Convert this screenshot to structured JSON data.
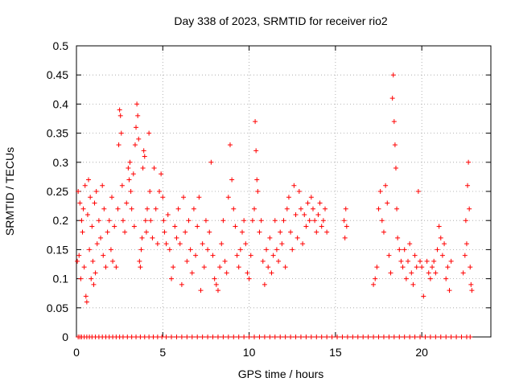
{
  "chart_data": {
    "type": "scatter",
    "title": "Day 338 of 2023, SRMTID for receiver rio2",
    "xlabel": "GPS time / hours",
    "ylabel": "SRMTID / TECUs",
    "xlim": [
      0,
      24
    ],
    "ylim": [
      0,
      0.5
    ],
    "x_ticks": [
      0,
      5,
      10,
      15,
      20
    ],
    "x_tick_labels": [
      "0",
      "5",
      "10",
      "15",
      "20"
    ],
    "y_ticks": [
      0,
      0.05,
      0.1,
      0.15,
      0.2,
      0.25,
      0.3,
      0.35,
      0.4,
      0.45,
      0.5
    ],
    "y_tick_labels": [
      "0",
      "0.05",
      "0.1",
      "0.15",
      "0.2",
      "0.25",
      "0.3",
      "0.35",
      "0.4",
      "0.45",
      "0.5"
    ],
    "grid": true,
    "marker": "+",
    "color": "#ff0000",
    "series": [
      {
        "name": "SRMTID",
        "points": [
          [
            0.05,
            0.13
          ],
          [
            0.1,
            0.25
          ],
          [
            0.15,
            0.14
          ],
          [
            0.2,
            0.23
          ],
          [
            0.25,
            0.1
          ],
          [
            0.3,
            0.2
          ],
          [
            0.35,
            0.18
          ],
          [
            0.4,
            0.22
          ],
          [
            0.45,
            0.12
          ],
          [
            0.5,
            0.26
          ],
          [
            0.55,
            0.07
          ],
          [
            0.6,
            0.06
          ],
          [
            0.65,
            0.21
          ],
          [
            0.7,
            0.27
          ],
          [
            0.75,
            0.15
          ],
          [
            0.8,
            0.24
          ],
          [
            0.85,
            0.1
          ],
          [
            0.9,
            0.19
          ],
          [
            0.95,
            0.13
          ],
          [
            1.0,
            0.09
          ],
          [
            1.05,
            0.23
          ],
          [
            1.1,
            0.11
          ],
          [
            1.15,
            0.25
          ],
          [
            1.2,
            0.16
          ],
          [
            1.3,
            0.2
          ],
          [
            1.4,
            0.17
          ],
          [
            1.5,
            0.26
          ],
          [
            1.55,
            0.14
          ],
          [
            1.6,
            0.22
          ],
          [
            1.7,
            0.12
          ],
          [
            1.8,
            0.18
          ],
          [
            1.9,
            0.2
          ],
          [
            2.0,
            0.15
          ],
          [
            2.05,
            0.24
          ],
          [
            2.1,
            0.13
          ],
          [
            2.2,
            0.19
          ],
          [
            2.3,
            0.12
          ],
          [
            2.4,
            0.22
          ],
          [
            2.45,
            0.33
          ],
          [
            2.5,
            0.39
          ],
          [
            2.55,
            0.38
          ],
          [
            2.6,
            0.35
          ],
          [
            2.65,
            0.26
          ],
          [
            2.7,
            0.2
          ],
          [
            2.8,
            0.18
          ],
          [
            2.9,
            0.23
          ],
          [
            3.0,
            0.29
          ],
          [
            3.05,
            0.27
          ],
          [
            3.1,
            0.3
          ],
          [
            3.15,
            0.25
          ],
          [
            3.2,
            0.22
          ],
          [
            3.3,
            0.28
          ],
          [
            3.35,
            0.19
          ],
          [
            3.4,
            0.33
          ],
          [
            3.45,
            0.36
          ],
          [
            3.5,
            0.4
          ],
          [
            3.55,
            0.38
          ],
          [
            3.6,
            0.34
          ],
          [
            3.65,
            0.13
          ],
          [
            3.7,
            0.12
          ],
          [
            3.75,
            0.15
          ],
          [
            3.8,
            0.17
          ],
          [
            3.85,
            0.29
          ],
          [
            3.9,
            0.32
          ],
          [
            3.95,
            0.31
          ],
          [
            4.0,
            0.2
          ],
          [
            4.05,
            0.18
          ],
          [
            4.1,
            0.22
          ],
          [
            4.2,
            0.35
          ],
          [
            4.25,
            0.25
          ],
          [
            4.3,
            0.2
          ],
          [
            4.4,
            0.17
          ],
          [
            4.5,
            0.29
          ],
          [
            4.6,
            0.22
          ],
          [
            4.7,
            0.16
          ],
          [
            4.8,
            0.25
          ],
          [
            4.9,
            0.28
          ],
          [
            5.0,
            0.24
          ],
          [
            5.05,
            0.2
          ],
          [
            5.1,
            0.18
          ],
          [
            5.2,
            0.16
          ],
          [
            5.3,
            0.21
          ],
          [
            5.4,
            0.15
          ],
          [
            5.5,
            0.1
          ],
          [
            5.6,
            0.12
          ],
          [
            5.7,
            0.19
          ],
          [
            5.8,
            0.17
          ],
          [
            5.9,
            0.22
          ],
          [
            6.0,
            0.16
          ],
          [
            6.1,
            0.09
          ],
          [
            6.2,
            0.24
          ],
          [
            6.3,
            0.18
          ],
          [
            6.4,
            0.13
          ],
          [
            6.5,
            0.2
          ],
          [
            6.6,
            0.15
          ],
          [
            6.7,
            0.11
          ],
          [
            6.8,
            0.22
          ],
          [
            6.9,
            0.14
          ],
          [
            7.0,
            0.19
          ],
          [
            7.1,
            0.24
          ],
          [
            7.2,
            0.08
          ],
          [
            7.3,
            0.16
          ],
          [
            7.4,
            0.12
          ],
          [
            7.5,
            0.2
          ],
          [
            7.6,
            0.15
          ],
          [
            7.7,
            0.18
          ],
          [
            7.8,
            0.3
          ],
          [
            7.9,
            0.14
          ],
          [
            8.0,
            0.1
          ],
          [
            8.1,
            0.09
          ],
          [
            8.2,
            0.08
          ],
          [
            8.3,
            0.12
          ],
          [
            8.4,
            0.16
          ],
          [
            8.5,
            0.2
          ],
          [
            8.6,
            0.13
          ],
          [
            8.7,
            0.11
          ],
          [
            8.8,
            0.24
          ],
          [
            8.9,
            0.33
          ],
          [
            9.0,
            0.27
          ],
          [
            9.1,
            0.22
          ],
          [
            9.2,
            0.19
          ],
          [
            9.3,
            0.14
          ],
          [
            9.4,
            0.12
          ],
          [
            9.5,
            0.15
          ],
          [
            9.6,
            0.18
          ],
          [
            9.7,
            0.2
          ],
          [
            9.8,
            0.16
          ],
          [
            9.9,
            0.11
          ],
          [
            10.0,
            0.1
          ],
          [
            10.1,
            0.14
          ],
          [
            10.2,
            0.2
          ],
          [
            10.3,
            0.22
          ],
          [
            10.35,
            0.37
          ],
          [
            10.4,
            0.32
          ],
          [
            10.45,
            0.27
          ],
          [
            10.5,
            0.25
          ],
          [
            10.6,
            0.18
          ],
          [
            10.7,
            0.2
          ],
          [
            10.8,
            0.13
          ],
          [
            10.9,
            0.09
          ],
          [
            11.0,
            0.15
          ],
          [
            11.1,
            0.12
          ],
          [
            11.2,
            0.17
          ],
          [
            11.3,
            0.11
          ],
          [
            11.4,
            0.14
          ],
          [
            11.5,
            0.2
          ],
          [
            11.6,
            0.15
          ],
          [
            11.7,
            0.13
          ],
          [
            11.8,
            0.18
          ],
          [
            11.9,
            0.16
          ],
          [
            12.0,
            0.2
          ],
          [
            12.1,
            0.12
          ],
          [
            12.2,
            0.22
          ],
          [
            12.3,
            0.24
          ],
          [
            12.4,
            0.18
          ],
          [
            12.5,
            0.15
          ],
          [
            12.6,
            0.26
          ],
          [
            12.7,
            0.21
          ],
          [
            12.8,
            0.17
          ],
          [
            12.9,
            0.25
          ],
          [
            13.0,
            0.22
          ],
          [
            13.1,
            0.16
          ],
          [
            13.2,
            0.21
          ],
          [
            13.3,
            0.19
          ],
          [
            13.4,
            0.23
          ],
          [
            13.5,
            0.2
          ],
          [
            13.6,
            0.24
          ],
          [
            13.7,
            0.22
          ],
          [
            13.8,
            0.2
          ],
          [
            13.9,
            0.18
          ],
          [
            14.0,
            0.21
          ],
          [
            14.1,
            0.23
          ],
          [
            14.2,
            0.19
          ],
          [
            14.3,
            0.2
          ],
          [
            14.4,
            0.22
          ],
          [
            14.5,
            0.18
          ],
          [
            15.5,
            0.2
          ],
          [
            15.55,
            0.17
          ],
          [
            15.6,
            0.22
          ],
          [
            15.65,
            0.19
          ],
          [
            17.2,
            0.09
          ],
          [
            17.3,
            0.1
          ],
          [
            17.4,
            0.12
          ],
          [
            17.5,
            0.22
          ],
          [
            17.6,
            0.25
          ],
          [
            17.7,
            0.2
          ],
          [
            17.8,
            0.18
          ],
          [
            17.9,
            0.26
          ],
          [
            18.0,
            0.23
          ],
          [
            18.1,
            0.14
          ],
          [
            18.2,
            0.11
          ],
          [
            18.3,
            0.41
          ],
          [
            18.35,
            0.45
          ],
          [
            18.4,
            0.37
          ],
          [
            18.45,
            0.33
          ],
          [
            18.5,
            0.29
          ],
          [
            18.55,
            0.22
          ],
          [
            18.6,
            0.17
          ],
          [
            18.7,
            0.15
          ],
          [
            18.8,
            0.13
          ],
          [
            18.9,
            0.12
          ],
          [
            19.0,
            0.15
          ],
          [
            19.1,
            0.1
          ],
          [
            19.2,
            0.13
          ],
          [
            19.3,
            0.16
          ],
          [
            19.4,
            0.11
          ],
          [
            19.5,
            0.09
          ],
          [
            19.6,
            0.14
          ],
          [
            19.7,
            0.12
          ],
          [
            19.8,
            0.25
          ],
          [
            19.9,
            0.13
          ],
          [
            20.0,
            0.12
          ],
          [
            20.1,
            0.07
          ],
          [
            20.3,
            0.13
          ],
          [
            20.4,
            0.11
          ],
          [
            20.5,
            0.1
          ],
          [
            20.6,
            0.12
          ],
          [
            20.7,
            0.13
          ],
          [
            20.8,
            0.11
          ],
          [
            20.9,
            0.15
          ],
          [
            21.0,
            0.19
          ],
          [
            21.1,
            0.17
          ],
          [
            21.2,
            0.14
          ],
          [
            21.3,
            0.16
          ],
          [
            21.4,
            0.1
          ],
          [
            21.5,
            0.12
          ],
          [
            21.6,
            0.08
          ],
          [
            21.7,
            0.13
          ],
          [
            22.4,
            0.11
          ],
          [
            22.5,
            0.14
          ],
          [
            22.55,
            0.2
          ],
          [
            22.6,
            0.16
          ],
          [
            22.65,
            0.26
          ],
          [
            22.7,
            0.3
          ],
          [
            22.75,
            0.22
          ],
          [
            22.8,
            0.12
          ],
          [
            22.85,
            0.09
          ],
          [
            22.9,
            0.08
          ]
        ],
        "zero_x": [
          0.1,
          0.2,
          0.3,
          0.45,
          0.6,
          0.75,
          0.9,
          1.1,
          1.3,
          1.5,
          1.7,
          1.9,
          2.1,
          2.3,
          2.5,
          2.7,
          2.95,
          3.2,
          3.45,
          3.7,
          3.95,
          4.2,
          4.45,
          4.7,
          4.95,
          5.2,
          5.5,
          5.8,
          6.1,
          6.4,
          6.7,
          7.0,
          7.3,
          7.6,
          7.9,
          8.2,
          8.5,
          8.8,
          9.1,
          9.4,
          9.7,
          10.0,
          10.3,
          10.6,
          10.9,
          11.2,
          11.5,
          11.8,
          12.1,
          12.4,
          12.7,
          13.0,
          13.3,
          13.6,
          13.9,
          14.2,
          14.5,
          14.8,
          15.1,
          15.4,
          15.7,
          16.0,
          16.3,
          16.6,
          16.9,
          17.2,
          17.5,
          17.8,
          18.1,
          18.4,
          18.7,
          19.0,
          19.3,
          19.6,
          19.9,
          20.2,
          20.5,
          20.8,
          21.1,
          21.4,
          21.7,
          22.0,
          22.3,
          22.6,
          22.8
        ]
      }
    ]
  }
}
